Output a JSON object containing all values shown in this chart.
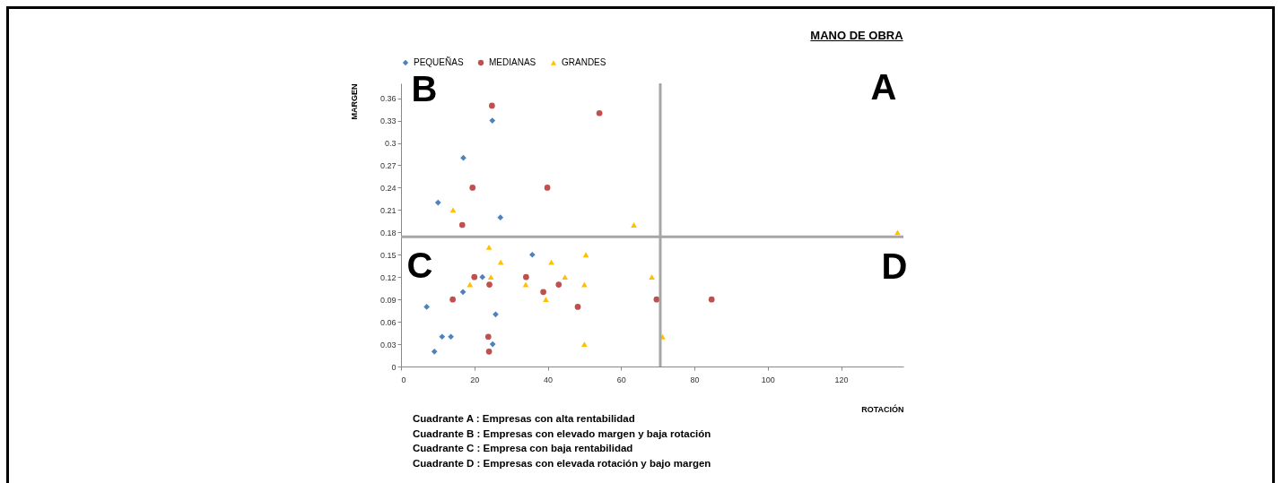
{
  "chart_data": {
    "type": "scatter",
    "title": "MANO DE OBRA",
    "xlabel": "ROTACIÓN",
    "ylabel": "MARGEN",
    "xlim": [
      0,
      137
    ],
    "xticks": [
      0,
      20,
      40,
      60,
      80,
      100,
      120
    ],
    "ylim": [
      0,
      0.38
    ],
    "yticks": [
      0,
      0.03,
      0.06,
      0.09,
      0.12,
      0.15,
      0.18,
      0.21,
      0.24,
      0.27,
      0.3,
      0.33,
      0.36
    ],
    "legend": "top",
    "grid": false,
    "series": [
      {
        "name": "PEQUEÑAS",
        "color": "#4f81bd",
        "marker": "diamond",
        "x": [
          10.1,
          17.0,
          24.9,
          27.1,
          7.0,
          9.1,
          11.2,
          13.6,
          16.9,
          22.2,
          25.8,
          25.0,
          35.8
        ],
        "values": [
          0.22,
          0.28,
          0.33,
          0.2,
          0.08,
          0.02,
          0.04,
          0.04,
          0.1,
          0.12,
          0.07,
          0.03,
          0.15
        ]
      },
      {
        "name": "MEDIANAS",
        "color": "#c0504d",
        "marker": "circle",
        "x": [
          24.8,
          54.1,
          19.5,
          39.9,
          16.7,
          20.0,
          14.1,
          24.1,
          23.8,
          24.0,
          34.1,
          38.8,
          43.0,
          48.2,
          69.7,
          84.7
        ],
        "values": [
          0.35,
          0.34,
          0.24,
          0.24,
          0.19,
          0.12,
          0.09,
          0.11,
          0.04,
          0.02,
          0.12,
          0.1,
          0.11,
          0.08,
          0.09,
          0.09
        ]
      },
      {
        "name": "GRANDES",
        "color": "#ffc000",
        "marker": "triangle",
        "x": [
          14.2,
          63.5,
          24.0,
          27.2,
          18.8,
          24.5,
          34.0,
          39.5,
          41.0,
          44.7,
          50.4,
          50.0,
          50.0,
          68.4,
          71.3,
          135.4
        ],
        "values": [
          0.21,
          0.19,
          0.16,
          0.14,
          0.11,
          0.12,
          0.11,
          0.09,
          0.14,
          0.12,
          0.15,
          0.11,
          0.03,
          0.12,
          0.04,
          0.18
        ]
      }
    ],
    "ref_lines": [
      {
        "axis": "x",
        "value": 70.7,
        "color": "#a6a6a6"
      },
      {
        "axis": "y",
        "value": 0.174,
        "color": "#a6a6a6"
      }
    ],
    "annotations": [
      "A",
      "B",
      "C",
      "D",
      "Cuadrante A : Empresas con alta rentabilidad",
      "Cuadrante B : Empresas con elevado margen y baja rotación",
      "Cuadrante C : Empresa con baja rentabilidad",
      "Cuadrante D : Empresas con elevada rotación y bajo margen"
    ]
  }
}
